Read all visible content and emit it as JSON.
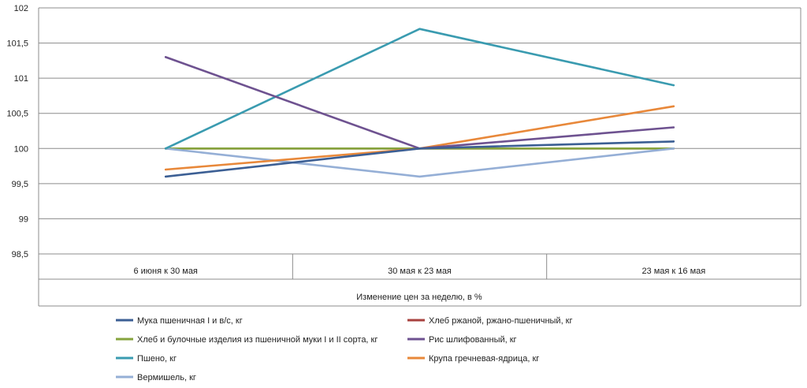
{
  "chart_data": {
    "type": "line",
    "title": "",
    "xlabel": "Изменение цен за неделю, в %",
    "ylabel": "",
    "ylim": [
      98.5,
      102
    ],
    "y_ticks": [
      "98,5",
      "99",
      "99,5",
      "100",
      "100,5",
      "101",
      "101,5",
      "102"
    ],
    "categories": [
      "6 июня к 30 мая",
      "30 мая к 23  мая",
      "23 мая к 16 мая"
    ],
    "grid": true,
    "legend_position": "bottom",
    "series": [
      {
        "name": "Мука пшеничная I и в/с, кг",
        "color": "#3C5F94",
        "values": [
          99.6,
          100.0,
          100.1
        ]
      },
      {
        "name": "Хлеб ржаной, ржано-пшеничный, кг",
        "color": "#A8423F",
        "values": [
          100.0,
          100.0,
          100.0
        ]
      },
      {
        "name": "Хлеб и булочные изделия из пшеничной муки I и II сорта, кг",
        "color": "#86A33D",
        "values": [
          100.0,
          100.0,
          100.0
        ]
      },
      {
        "name": "Рис шлифованный, кг",
        "color": "#6E5290",
        "values": [
          101.3,
          100.0,
          100.3
        ]
      },
      {
        "name": "Пшено, кг",
        "color": "#3A9BB0",
        "values": [
          100.0,
          101.7,
          100.9
        ]
      },
      {
        "name": "Крупа гречневая-ядрица, кг",
        "color": "#E8883A",
        "values": [
          99.7,
          100.0,
          100.6
        ]
      },
      {
        "name": "Вермишель, кг",
        "color": "#95AFD6",
        "values": [
          100.0,
          99.6,
          100.0
        ]
      }
    ]
  }
}
